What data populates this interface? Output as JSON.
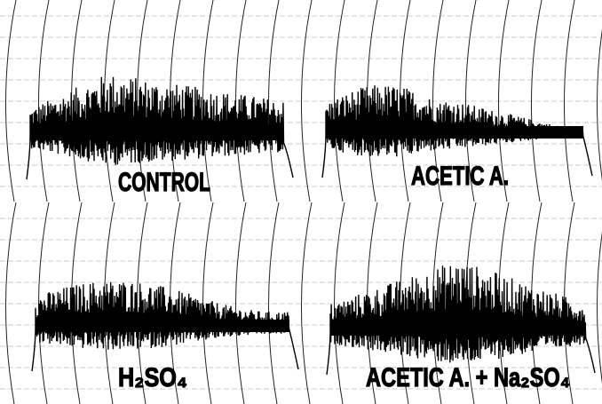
{
  "panels": [
    {
      "label": "CONTROL"
    },
    {
      "label": "ACETIC A."
    },
    {
      "label": "H₂SO₄"
    },
    {
      "label": "ACETIC A. + Na₂SO₄"
    }
  ]
}
